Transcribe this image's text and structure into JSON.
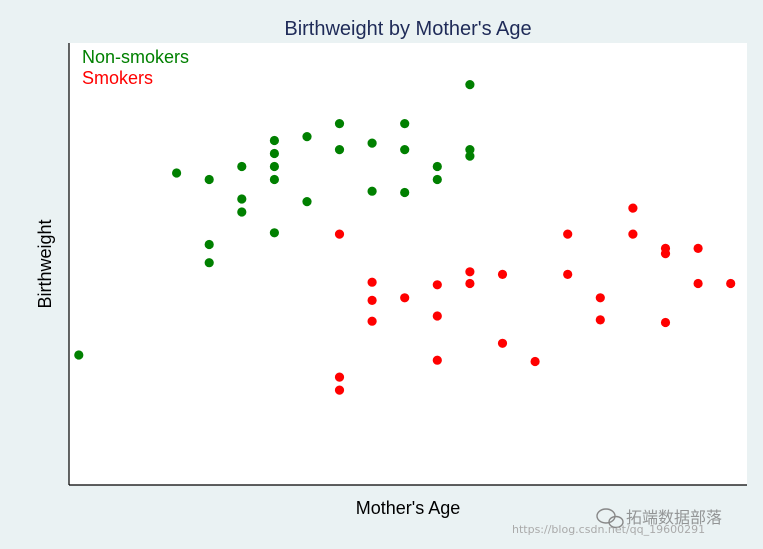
{
  "chart_data": {
    "type": "scatter",
    "title": "Birthweight by Mother's Age",
    "xlabel": "Mother's Age",
    "ylabel": "Birthweight",
    "xlim": [
      14.7,
      35.5
    ],
    "ylim": [
      1100,
      4500
    ],
    "grid": false,
    "legend_placement": "top-left",
    "series": [
      {
        "name": "Non-smokers",
        "color": "#008000",
        "points": [
          [
            15,
            2100
          ],
          [
            18,
            3500
          ],
          [
            19,
            3450
          ],
          [
            19,
            2950
          ],
          [
            19,
            2810
          ],
          [
            20,
            3550
          ],
          [
            20,
            3300
          ],
          [
            20,
            3200
          ],
          [
            21,
            3750
          ],
          [
            21,
            3650
          ],
          [
            21,
            3550
          ],
          [
            21,
            3450
          ],
          [
            21,
            3040
          ],
          [
            22,
            3780
          ],
          [
            22,
            3280
          ],
          [
            23,
            3880
          ],
          [
            23,
            3680
          ],
          [
            24,
            3730
          ],
          [
            24,
            3360
          ],
          [
            25,
            3880
          ],
          [
            25,
            3680
          ],
          [
            25,
            3350
          ],
          [
            26,
            3550
          ],
          [
            26,
            3450
          ],
          [
            27,
            4180
          ],
          [
            27,
            3680
          ],
          [
            27,
            3630
          ]
        ]
      },
      {
        "name": "Smokers",
        "color": "#ff0000",
        "points": [
          [
            23,
            3030
          ],
          [
            23,
            1930
          ],
          [
            23,
            1830
          ],
          [
            24,
            2660
          ],
          [
            24,
            2520
          ],
          [
            24,
            2360
          ],
          [
            25,
            2540
          ],
          [
            26,
            2640
          ],
          [
            26,
            2400
          ],
          [
            26,
            2060
          ],
          [
            27,
            2740
          ],
          [
            27,
            2650
          ],
          [
            28,
            2720
          ],
          [
            28,
            2190
          ],
          [
            29,
            2050
          ],
          [
            30,
            3030
          ],
          [
            30,
            2720
          ],
          [
            31,
            2540
          ],
          [
            31,
            2370
          ],
          [
            32,
            3230
          ],
          [
            32,
            3030
          ],
          [
            33,
            2920
          ],
          [
            33,
            2880
          ],
          [
            33,
            2350
          ],
          [
            34,
            2920
          ],
          [
            34,
            2650
          ],
          [
            35,
            2650
          ]
        ]
      }
    ]
  },
  "legend": {
    "items": [
      {
        "label": "Non-smokers",
        "color": "#008000"
      },
      {
        "label": "Smokers",
        "color": "#ff0000"
      }
    ]
  },
  "watermark": {
    "text": "拓端数据部落",
    "url": "https://blog.csdn.net/qq_19600291"
  }
}
